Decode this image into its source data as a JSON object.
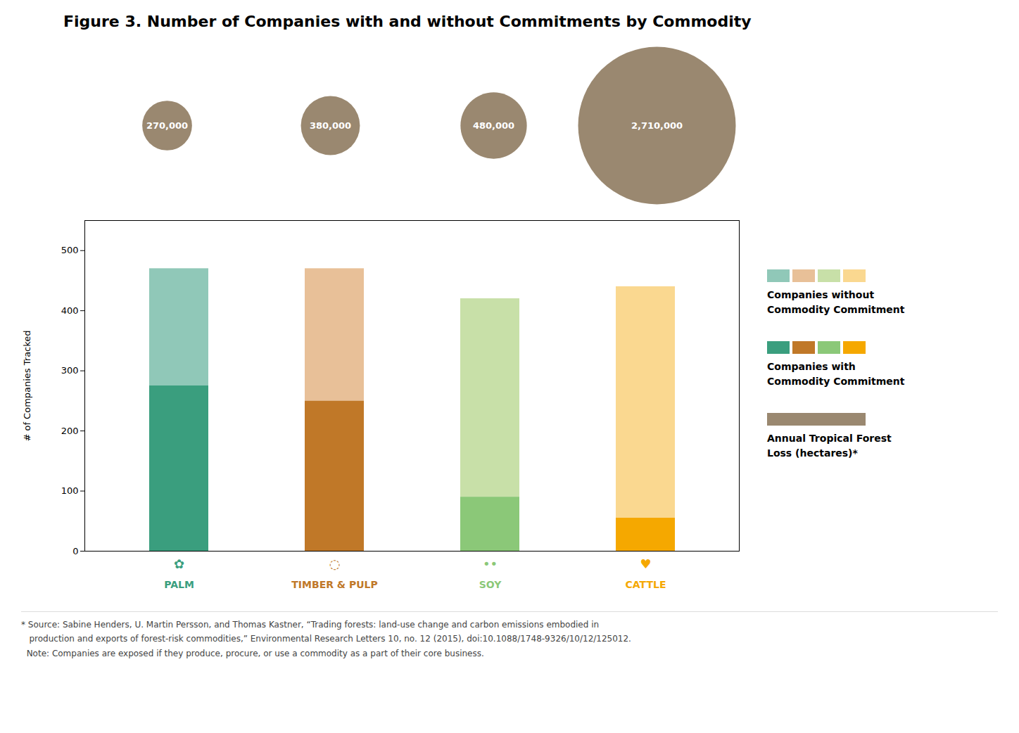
{
  "chart_data": {
    "type": "bar",
    "stacked": true,
    "legend": "right",
    "title": "Figure 3. Number of Companies with and without Commitments by Commodity",
    "categories": [
      "PALM",
      "TIMBER & PULP",
      "SOY",
      "CATTLE"
    ],
    "icons": [
      "✿",
      "◌",
      "••",
      "♥"
    ],
    "series": [
      {
        "name": "Companies with\nCommodity Commitment",
        "colors": [
          "#3A9E7E",
          "#C07828",
          "#8BC878",
          "#F5A800"
        ],
        "values": [
          275,
          250,
          90,
          55
        ]
      },
      {
        "name": "Companies without\nCommodity Commitment",
        "colors": [
          "#90C8B8",
          "#E8C098",
          "#C8E0A8",
          "#FAD890"
        ],
        "values": [
          195,
          220,
          330,
          385
        ]
      }
    ],
    "bubbles": {
      "name": "Annual Tropical Forest\nLoss (hectares)*",
      "color": "#9A8870",
      "values": [
        270000,
        380000,
        480000,
        2710000
      ],
      "value_labels": [
        "270,000",
        "380,000",
        "480,000",
        "2,710,000"
      ]
    },
    "ylabel": "# of Companies Tracked",
    "ylim": [
      0,
      550
    ],
    "yticks": [
      0,
      100,
      200,
      300,
      400,
      500
    ],
    "footnotes": [
      "* Source: Sabine Henders, U. Martin Persson, and Thomas Kastner, “Trading forests: land-use change and carbon emissions embodied in",
      "   production and exports of forest-risk commodities,” Environmental Research Letters 10, no. 12 (2015), doi:10.1088/1748-9326/10/12/125012.",
      "  Note: Companies are exposed if they produce, procure, or use a commodity as a part of their core business."
    ]
  }
}
